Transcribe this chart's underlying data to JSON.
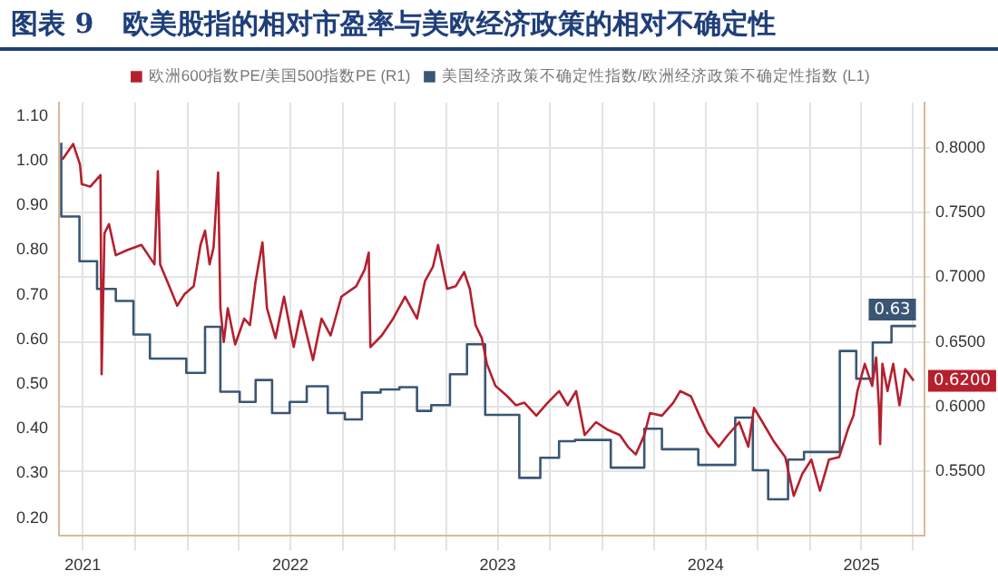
{
  "chart_data": {
    "type": "line",
    "title": "图表 9   欧美股指的相对市盈率与美欧经济政策的相对不确定性",
    "xlim": [
      "2021-05-20",
      "2025-07-21"
    ],
    "xticks": [
      {
        "value": "2021-07-01",
        "label": "2021"
      },
      {
        "value": "2021-10-01",
        "label": null
      },
      {
        "value": "2022-01-01",
        "label": null
      },
      {
        "value": "2022-04-01",
        "label": null
      },
      {
        "value": "2022-07-01",
        "label": "2022"
      },
      {
        "value": "2022-10-01",
        "label": null
      },
      {
        "value": "2023-01-01",
        "label": null
      },
      {
        "value": "2023-04-01",
        "label": null
      },
      {
        "value": "2023-07-01",
        "label": "2023"
      },
      {
        "value": "2023-10-01",
        "label": null
      },
      {
        "value": "2024-01-01",
        "label": null
      },
      {
        "value": "2024-04-01",
        "label": null
      },
      {
        "value": "2024-07-01",
        "label": "2024"
      },
      {
        "value": "2024-10-01",
        "label": null
      },
      {
        "value": "2025-01-01",
        "label": null
      },
      {
        "value": "2025-04-01",
        "label": "2025"
      },
      {
        "value": "2025-07-01",
        "label": null
      }
    ],
    "ylim": [
      0.16,
      1.13
    ],
    "yticks": [
      {
        "value": 0.2,
        "label": "0.20"
      },
      {
        "value": 0.3,
        "label": "0.30"
      },
      {
        "value": 0.4,
        "label": "0.40"
      },
      {
        "value": 0.5,
        "label": "0.50"
      },
      {
        "value": 0.6,
        "label": "0.60"
      },
      {
        "value": 0.7,
        "label": "0.70"
      },
      {
        "value": 0.8,
        "label": "0.80"
      },
      {
        "value": 0.9,
        "label": "0.90"
      },
      {
        "value": 1.0,
        "label": "1.00"
      },
      {
        "value": 1.1,
        "label": "1.10"
      }
    ],
    "y2lim": [
      0.5,
      0.835
    ],
    "y2ticks": [
      {
        "value": 0.55,
        "label": "0.5500"
      },
      {
        "value": 0.6,
        "label": "0.6000"
      },
      {
        "value": 0.65,
        "label": "0.6500"
      },
      {
        "value": 0.7,
        "label": "0.7000"
      },
      {
        "value": 0.75,
        "label": "0.7500"
      },
      {
        "value": 0.8,
        "label": "0.8000"
      }
    ],
    "grid": true,
    "legend": "top",
    "marker": "none",
    "series": [
      {
        "name": "欧洲600指数PE/美国500指数PE (R1)",
        "color": "#b5202e",
        "axis": "y2",
        "x": [
          "2021-05-26",
          "2021-06-14",
          "2021-06-26",
          "2021-06-29",
          "2021-07-14",
          "2021-08-01",
          "2021-08-03",
          "2021-08-08",
          "2021-08-16",
          "2021-08-28",
          "2021-09-17",
          "2021-10-12",
          "2021-11-04",
          "2021-11-10",
          "2021-11-14",
          "2021-12-02",
          "2021-12-14",
          "2021-12-27",
          "2022-01-12",
          "2022-01-24",
          "2022-02-01",
          "2022-02-09",
          "2022-02-16",
          "2022-02-24",
          "2022-02-28",
          "2022-03-06",
          "2022-03-13",
          "2022-03-26",
          "2022-04-11",
          "2022-04-21",
          "2022-05-01",
          "2022-05-13",
          "2022-05-21",
          "2022-06-05",
          "2022-06-20",
          "2022-07-07",
          "2022-07-20",
          "2022-08-10",
          "2022-08-25",
          "2022-09-10",
          "2022-09-29",
          "2022-10-25",
          "2022-11-09",
          "2022-11-16",
          "2022-11-19",
          "2022-12-09",
          "2022-12-29",
          "2023-01-19",
          "2023-02-09",
          "2023-02-23",
          "2023-03-09",
          "2023-03-18",
          "2023-04-03",
          "2023-04-18",
          "2023-05-03",
          "2023-05-13",
          "2023-05-23",
          "2023-06-03",
          "2023-06-12",
          "2023-06-27",
          "2023-07-18",
          "2023-08-02",
          "2023-08-17",
          "2023-09-07",
          "2023-09-27",
          "2023-10-17",
          "2023-11-01",
          "2023-11-16",
          "2023-12-01",
          "2023-12-21",
          "2024-01-11",
          "2024-02-01",
          "2024-02-15",
          "2024-02-29",
          "2024-03-15",
          "2024-03-25",
          "2024-04-15",
          "2024-05-05",
          "2024-05-17",
          "2024-06-05",
          "2024-06-20",
          "2024-07-04",
          "2024-07-24",
          "2024-08-09",
          "2024-08-29",
          "2024-09-14",
          "2024-09-24",
          "2024-10-09",
          "2024-10-29",
          "2024-11-18",
          "2024-12-03",
          "2024-12-18",
          "2025-01-03",
          "2025-01-18",
          "2025-02-03",
          "2025-02-21",
          "2025-03-08",
          "2025-03-18",
          "2025-03-25",
          "2025-04-07",
          "2025-04-20",
          "2025-04-27",
          "2025-05-02",
          "2025-05-04",
          "2025-05-08",
          "2025-05-17",
          "2025-05-27",
          "2025-06-07",
          "2025-06-17",
          "2025-06-27",
          "2025-07-02"
        ],
        "values": [
          0.791,
          0.803,
          0.787,
          0.772,
          0.77,
          0.779,
          0.625,
          0.734,
          0.741,
          0.717,
          0.721,
          0.725,
          0.71,
          0.782,
          0.71,
          0.691,
          0.678,
          0.687,
          0.693,
          0.725,
          0.736,
          0.71,
          0.723,
          0.781,
          0.676,
          0.65,
          0.676,
          0.648,
          0.668,
          0.663,
          0.697,
          0.727,
          0.676,
          0.653,
          0.685,
          0.646,
          0.674,
          0.636,
          0.668,
          0.655,
          0.685,
          0.693,
          0.706,
          0.719,
          0.646,
          0.655,
          0.668,
          0.685,
          0.668,
          0.697,
          0.708,
          0.725,
          0.691,
          0.693,
          0.704,
          0.691,
          0.663,
          0.653,
          0.633,
          0.616,
          0.608,
          0.601,
          0.603,
          0.593,
          0.603,
          0.612,
          0.601,
          0.612,
          0.578,
          0.588,
          0.582,
          0.578,
          0.569,
          0.563,
          0.578,
          0.595,
          0.593,
          0.603,
          0.612,
          0.608,
          0.593,
          0.58,
          0.569,
          0.578,
          0.588,
          0.569,
          0.599,
          0.588,
          0.573,
          0.561,
          0.531,
          0.548,
          0.559,
          0.535,
          0.559,
          0.561,
          0.582,
          0.593,
          0.612,
          0.633,
          0.616,
          0.638,
          0.599,
          0.571,
          0.633,
          0.612,
          0.633,
          0.601,
          0.629,
          0.623,
          0.62
        ],
        "value_labels": [
          null,
          null,
          null,
          null,
          null,
          null,
          null,
          null,
          null,
          null,
          null,
          null,
          null,
          null,
          null,
          null,
          null,
          null,
          null,
          null,
          null,
          null,
          null,
          null,
          null,
          null,
          null,
          null,
          null,
          null,
          null,
          null,
          null,
          null,
          null,
          null,
          null,
          null,
          null,
          null,
          null,
          null,
          null,
          null,
          null,
          null,
          null,
          null,
          null,
          null,
          null,
          null,
          null,
          null,
          null,
          null,
          null,
          null,
          null,
          null,
          null,
          null,
          null,
          null,
          null,
          null,
          null,
          null,
          null,
          null,
          null,
          null,
          null,
          null,
          null,
          null,
          null,
          null,
          null,
          null,
          null,
          null,
          null,
          null,
          null,
          null,
          null,
          null,
          null,
          null,
          null,
          null,
          null,
          null,
          null,
          null,
          null,
          null,
          null,
          null,
          null,
          null,
          null,
          null,
          null,
          null,
          null,
          null,
          null,
          null,
          "0.6200"
        ]
      },
      {
        "name": "美国经济政策不确定性指数/欧洲经济政策不确定性指数 (L1)",
        "color": "#3a5674",
        "axis": "y",
        "type": "step",
        "x": [
          "2021-05-24",
          "2021-06-25",
          "2021-07-26",
          "2021-08-28",
          "2021-09-28",
          "2021-10-27",
          "2021-12-30",
          "2022-02-01",
          "2022-02-28",
          "2022-04-03",
          "2022-05-01",
          "2022-05-30",
          "2022-06-30",
          "2022-07-30",
          "2022-09-05",
          "2022-10-05",
          "2022-11-04",
          "2022-12-07",
          "2023-01-09",
          "2023-02-09",
          "2023-03-06",
          "2023-04-08",
          "2023-05-08",
          "2023-06-09",
          "2023-08-08",
          "2023-09-14",
          "2023-10-17",
          "2023-11-14",
          "2024-01-16",
          "2024-03-15",
          "2024-04-15",
          "2024-06-18",
          "2024-08-22",
          "2024-09-22",
          "2024-10-19",
          "2024-11-23",
          "2024-12-21",
          "2025-02-22",
          "2025-03-23",
          "2025-04-21",
          "2025-05-24",
          "2025-06-27",
          "2025-07-06"
        ],
        "values": [
          1.04,
          0.875,
          0.775,
          0.713,
          0.686,
          0.611,
          0.557,
          0.525,
          0.628,
          0.483,
          0.46,
          0.509,
          0.435,
          0.46,
          0.495,
          0.435,
          0.421,
          0.481,
          0.488,
          0.493,
          0.44,
          0.453,
          0.522,
          0.589,
          0.431,
          0.29,
          0.335,
          0.372,
          0.375,
          0.313,
          0.4,
          0.354,
          0.319,
          0.425,
          0.307,
          0.242,
          0.331,
          0.348,
          0.574,
          0.512,
          0.593,
          0.63,
          0.63
        ],
        "value_labels": [
          null,
          null,
          null,
          null,
          null,
          null,
          null,
          null,
          null,
          null,
          null,
          null,
          null,
          null,
          null,
          null,
          null,
          null,
          null,
          null,
          null,
          null,
          null,
          null,
          null,
          null,
          null,
          null,
          null,
          null,
          null,
          null,
          null,
          null,
          null,
          null,
          null,
          null,
          null,
          null,
          null,
          null,
          "0.63"
        ]
      }
    ]
  }
}
